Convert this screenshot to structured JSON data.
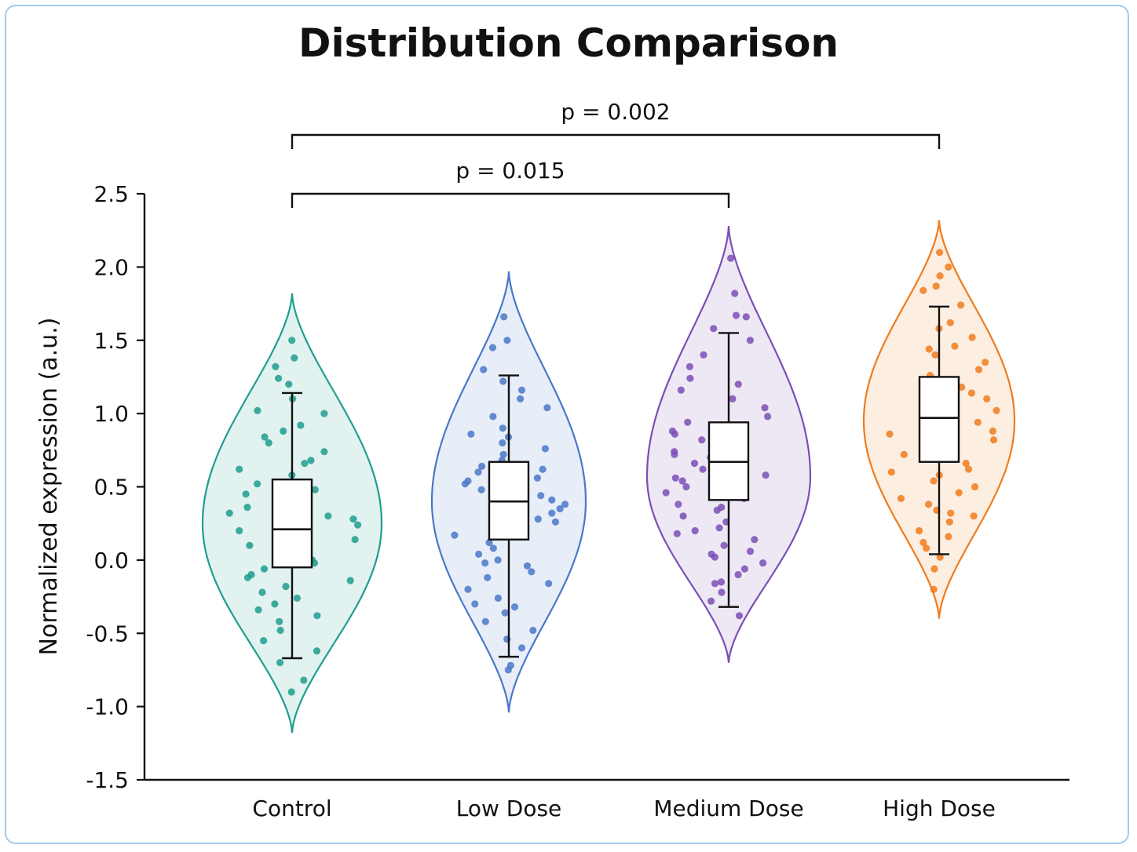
{
  "chart_data": {
    "type": "violin",
    "title": "Distribution Comparison",
    "xlabel": "",
    "ylabel": "Normalized expression (a.u.)",
    "ylim": [
      -1.5,
      2.5
    ],
    "yticks": [
      2.5,
      2.0,
      1.5,
      1.0,
      0.5,
      0.0,
      -0.5,
      -1.0,
      -1.5
    ],
    "ytick_labels": [
      "2.5",
      "2.0",
      "1.5",
      "1.0",
      "0.5",
      "0.0",
      "-0.5",
      "-1.0",
      "-1.5"
    ],
    "categories": [
      "Control",
      "Low Dose",
      "Medium Dose",
      "High Dose"
    ],
    "groups": [
      {
        "name": "Control",
        "color": "#1f9e8f",
        "violin_range": [
          -1.18,
          1.82
        ],
        "violin_center": 0.25,
        "box": {
          "whisker_low": -0.67,
          "q1": -0.05,
          "median": 0.21,
          "q3": 0.55,
          "whisker_high": 1.14
        },
        "points": [
          1.5,
          1.38,
          1.32,
          1.24,
          1.2,
          1.1,
          1.02,
          1.0,
          0.92,
          0.88,
          0.8,
          0.74,
          0.68,
          0.62,
          0.58,
          0.52,
          0.48,
          0.45,
          0.42,
          0.38,
          0.36,
          0.32,
          0.28,
          0.24,
          0.2,
          0.17,
          0.14,
          0.1,
          0.06,
          0.02,
          -0.02,
          -0.06,
          -0.1,
          -0.14,
          -0.18,
          -0.22,
          -0.26,
          -0.3,
          -0.34,
          -0.38,
          -0.42,
          -0.48,
          -0.55,
          -0.62,
          -0.7,
          -0.82,
          -0.9,
          0.84,
          0.66,
          0.44,
          0.3,
          0.0,
          -0.12
        ]
      },
      {
        "name": "Low Dose",
        "color": "#4a78c8",
        "violin_range": [
          -1.04,
          1.97
        ],
        "violin_center": 0.4,
        "box": {
          "whisker_low": -0.66,
          "q1": 0.14,
          "median": 0.4,
          "q3": 0.67,
          "whisker_high": 1.26
        },
        "points": [
          1.66,
          1.5,
          1.45,
          1.3,
          1.22,
          1.16,
          1.1,
          1.04,
          0.98,
          0.9,
          0.84,
          0.8,
          0.76,
          0.72,
          0.68,
          0.64,
          0.6,
          0.56,
          0.52,
          0.48,
          0.44,
          0.41,
          0.38,
          0.35,
          0.32,
          0.28,
          0.24,
          0.2,
          0.17,
          0.12,
          0.08,
          0.04,
          0.0,
          -0.04,
          -0.08,
          -0.12,
          -0.16,
          -0.2,
          -0.26,
          -0.32,
          -0.36,
          -0.42,
          -0.48,
          -0.54,
          -0.6,
          -0.72,
          -0.75,
          0.86,
          0.62,
          0.26,
          -0.02,
          -0.3,
          0.54
        ]
      },
      {
        "name": "Medium Dose",
        "color": "#7b4fb5",
        "violin_range": [
          -0.7,
          2.28
        ],
        "violin_center": 0.57,
        "box": {
          "whisker_low": -0.32,
          "q1": 0.41,
          "median": 0.67,
          "q3": 0.94,
          "whisker_high": 1.55
        },
        "points": [
          2.06,
          1.82,
          1.67,
          1.66,
          1.58,
          1.5,
          1.4,
          1.32,
          1.24,
          1.16,
          1.1,
          1.04,
          0.98,
          0.94,
          0.9,
          0.86,
          0.82,
          0.78,
          0.74,
          0.7,
          0.66,
          0.62,
          0.58,
          0.54,
          0.5,
          0.46,
          0.42,
          0.38,
          0.34,
          0.3,
          0.26,
          0.22,
          0.18,
          0.14,
          0.1,
          0.06,
          0.02,
          -0.02,
          -0.06,
          -0.1,
          -0.16,
          -0.22,
          -0.28,
          -0.38,
          0.56,
          0.72,
          0.2,
          0.04,
          0.88,
          1.2,
          0.36,
          -0.15
        ]
      },
      {
        "name": "High Dose",
        "color": "#f07b1c",
        "violin_range": [
          -0.4,
          2.32
        ],
        "violin_center": 0.95,
        "box": {
          "whisker_low": 0.04,
          "q1": 0.67,
          "median": 0.97,
          "q3": 1.25,
          "whisker_high": 1.73
        },
        "points": [
          2.1,
          2.0,
          1.94,
          1.87,
          1.84,
          1.74,
          1.62,
          1.58,
          1.52,
          1.46,
          1.4,
          1.35,
          1.3,
          1.26,
          1.22,
          1.18,
          1.14,
          1.1,
          1.06,
          1.02,
          0.98,
          0.94,
          0.9,
          0.86,
          0.82,
          0.78,
          0.74,
          0.7,
          0.66,
          0.62,
          0.58,
          0.54,
          0.5,
          0.46,
          0.42,
          0.38,
          0.34,
          0.3,
          0.26,
          0.2,
          0.16,
          0.12,
          0.08,
          0.02,
          -0.06,
          -0.2,
          0.88,
          1.08,
          0.6,
          1.44,
          0.72,
          0.32
        ]
      }
    ],
    "comparisons": [
      {
        "from": 0,
        "to": 3,
        "label": "p = 0.002",
        "level": 2
      },
      {
        "from": 0,
        "to": 2,
        "label": "p = 0.015",
        "level": 1
      }
    ]
  }
}
